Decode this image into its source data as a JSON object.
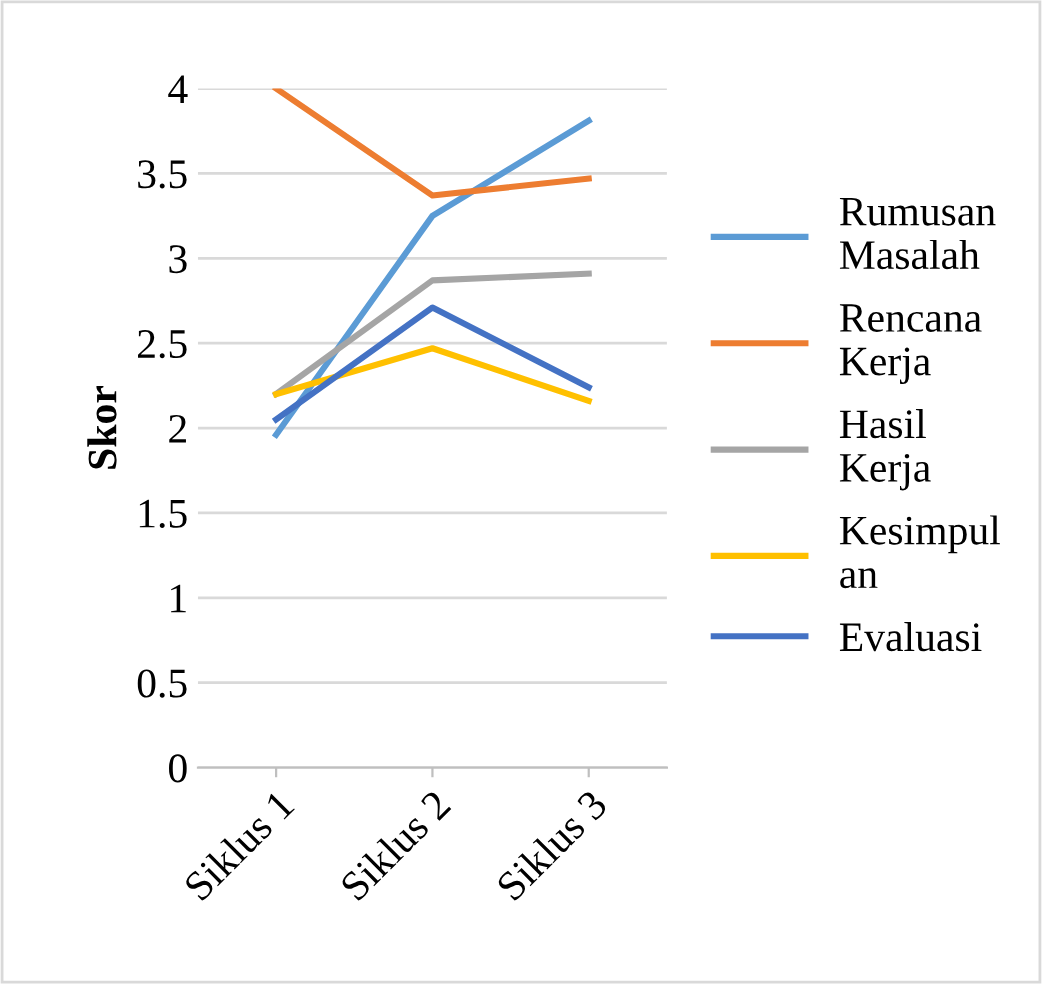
{
  "chart_data": {
    "type": "line",
    "ylabel": "Skor",
    "categories": [
      "Siklus 1",
      "Siklus 2",
      "Siklus 3"
    ],
    "series": [
      {
        "name": "Rumusan\nMasalah",
        "color": "#5b9bd5",
        "values": [
          1.96,
          3.25,
          3.81
        ]
      },
      {
        "name": "Rencana\nKerja",
        "color": "#ed7d31",
        "values": [
          4.0,
          3.37,
          3.47
        ]
      },
      {
        "name": "Hasil\nKerja",
        "color": "#a5a5a5",
        "values": [
          2.2,
          2.87,
          2.91
        ]
      },
      {
        "name": "Kesimpul\nan",
        "color": "#ffc000",
        "values": [
          2.2,
          2.47,
          2.16
        ]
      },
      {
        "name": "Evaluasi",
        "color": "#4472c4",
        "values": [
          2.05,
          2.71,
          2.24
        ]
      }
    ],
    "ylim": [
      0,
      4
    ],
    "yticks": [
      0,
      0.5,
      1,
      1.5,
      2,
      2.5,
      3,
      3.5,
      4
    ],
    "grid": "y",
    "legend": "right",
    "marker": "none",
    "line_style": "solid"
  }
}
